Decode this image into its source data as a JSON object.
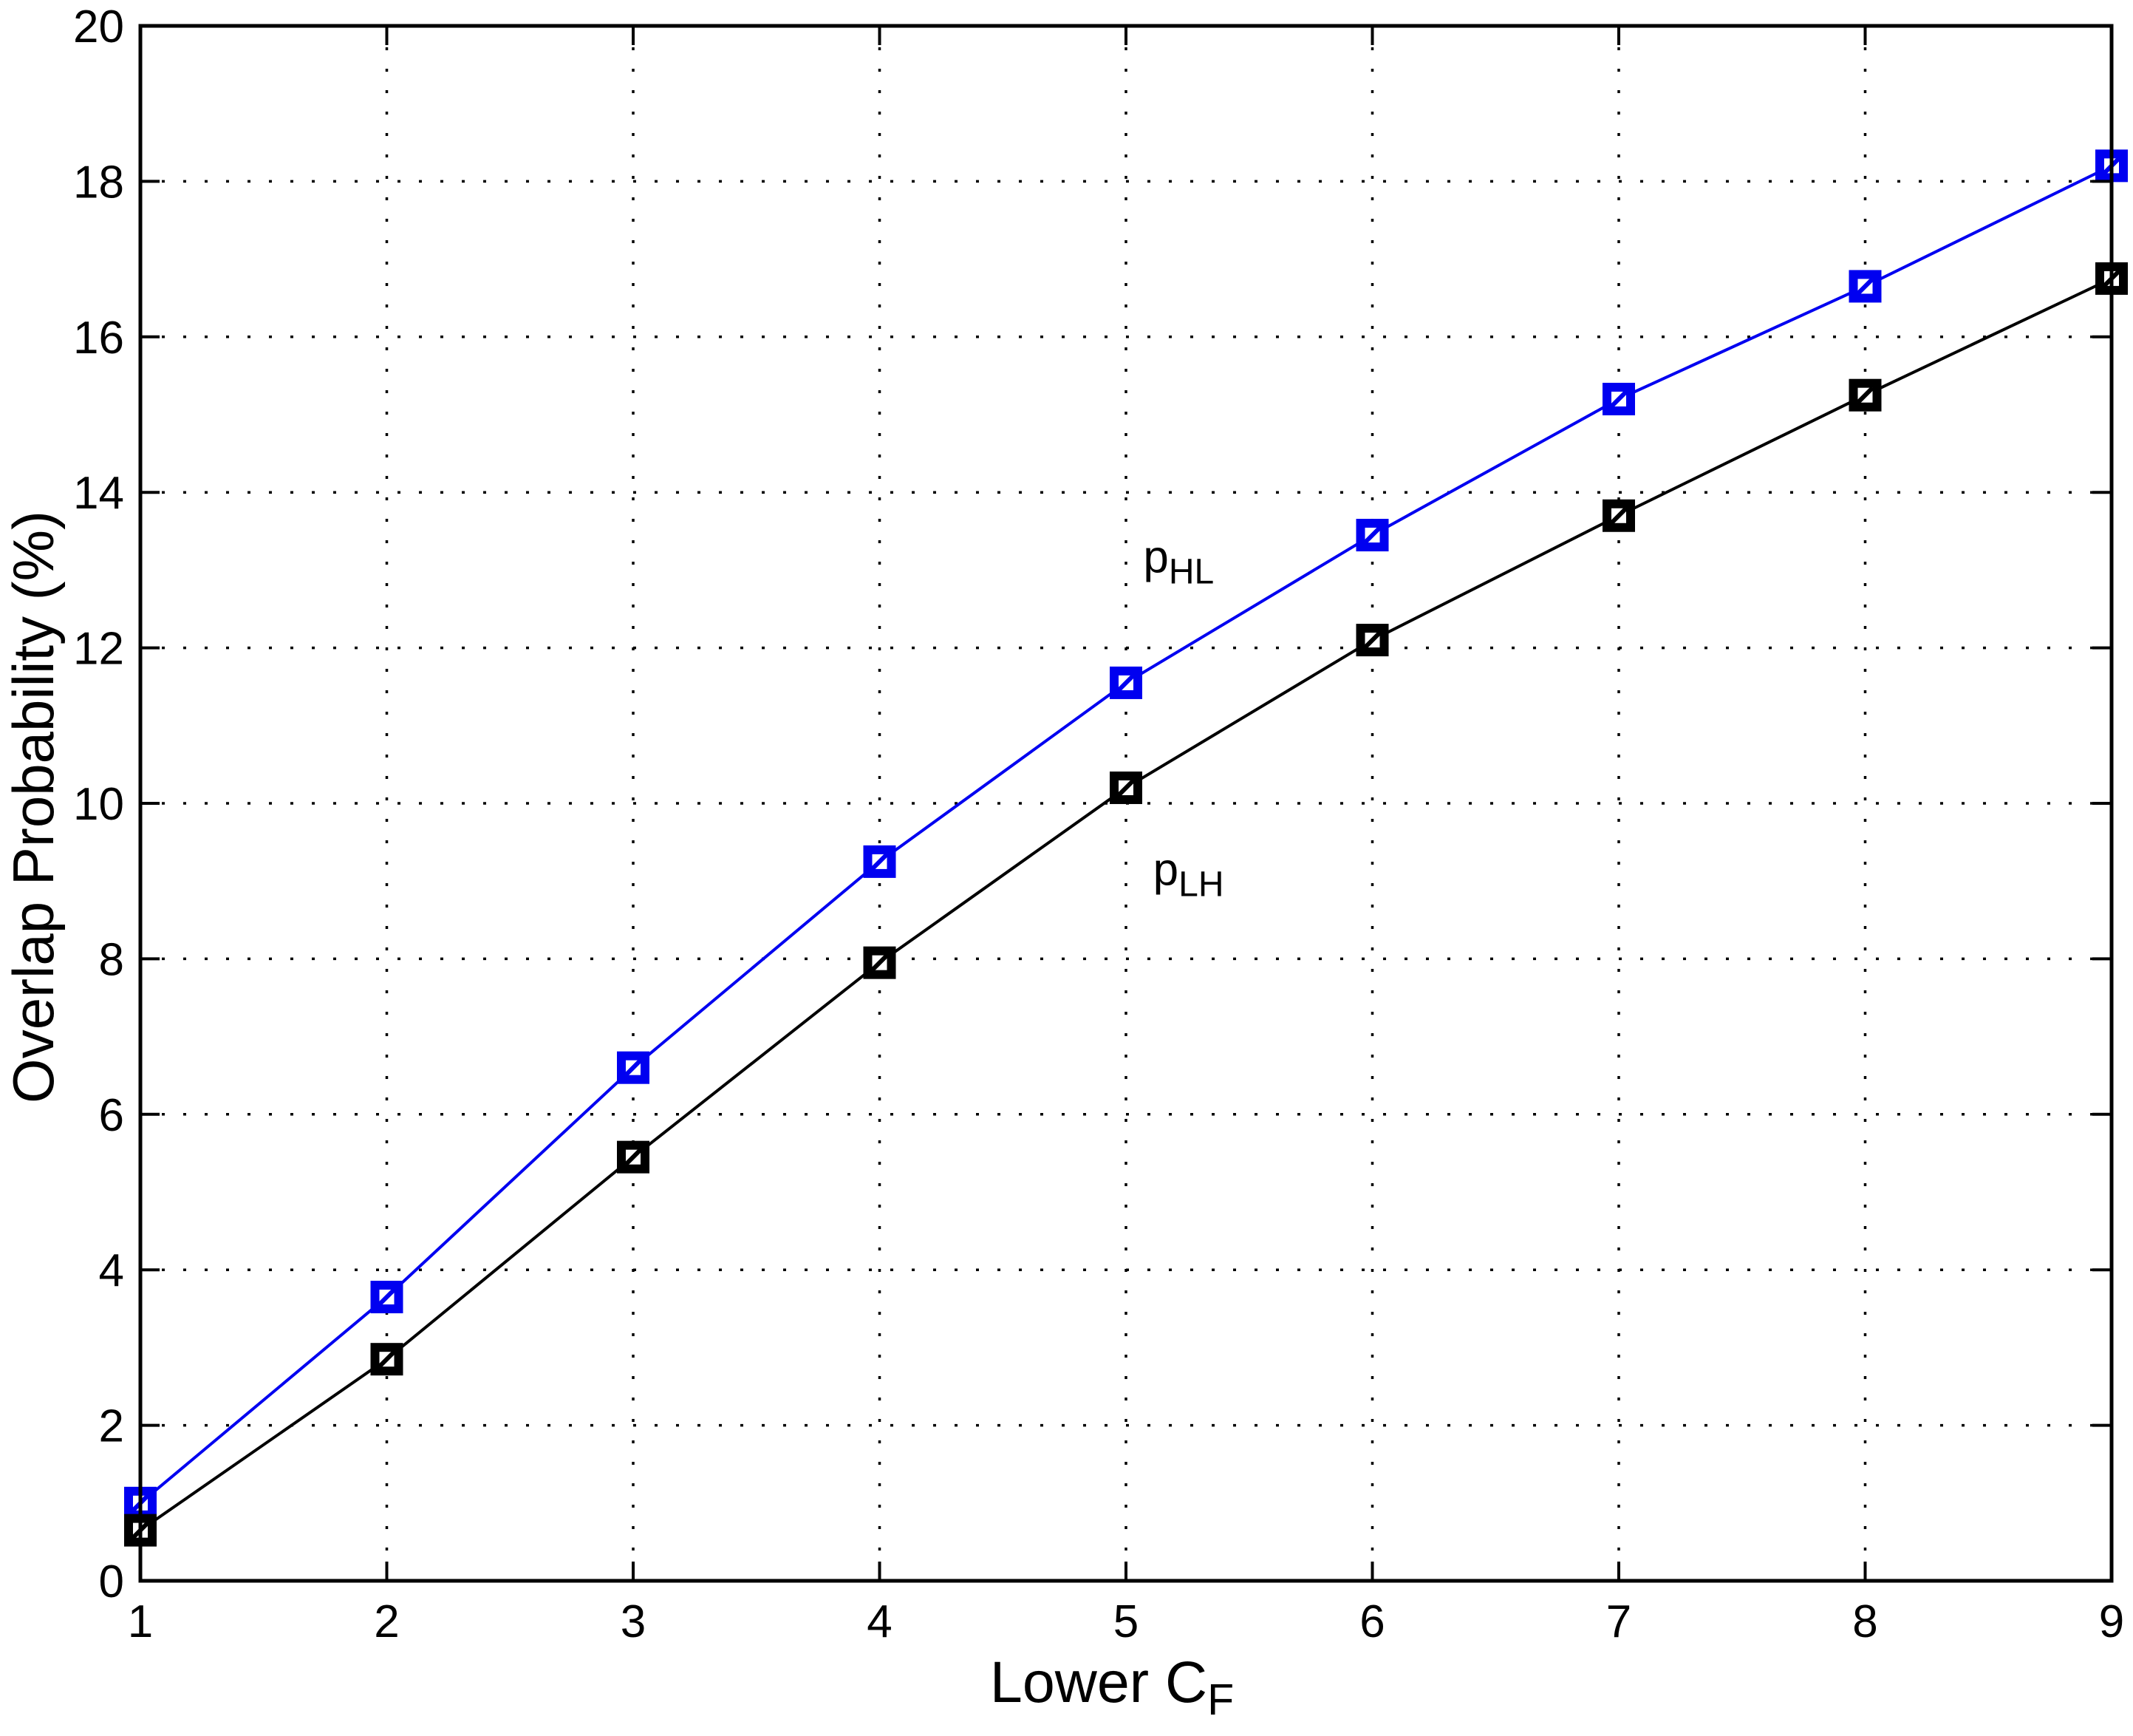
{
  "chart_data": {
    "type": "line",
    "title": "",
    "xlabel_main": "Lower C",
    "xlabel_sub": "F",
    "ylabel": "Overlap Probability (%)",
    "xlim": [
      1,
      9
    ],
    "ylim": [
      0,
      20
    ],
    "x_ticks": [
      1,
      2,
      3,
      4,
      5,
      6,
      7,
      8,
      9
    ],
    "y_ticks": [
      0,
      2,
      4,
      6,
      8,
      10,
      12,
      14,
      16,
      18,
      20
    ],
    "grid": "dotted",
    "grid_color": "#000000",
    "axis_color": "#000000",
    "background_color": "#ffffff",
    "legend_position": "inline-annotations",
    "x": [
      1,
      2,
      3,
      4,
      5,
      6,
      7,
      8,
      9
    ],
    "series": [
      {
        "name": "p_HL",
        "color": "#0000f0",
        "marker": "square-with-white-center",
        "values": [
          1.0,
          3.65,
          6.6,
          9.25,
          11.55,
          13.45,
          15.2,
          16.65,
          18.2
        ]
      },
      {
        "name": "p_LH",
        "color": "#000000",
        "marker": "square-with-white-center",
        "values": [
          0.65,
          2.85,
          5.45,
          7.95,
          10.2,
          12.1,
          13.7,
          15.25,
          16.75
        ]
      }
    ],
    "annotations": [
      {
        "main": "p",
        "sub": "HL",
        "x": 5.07,
        "y": 12.97
      },
      {
        "main": "p",
        "sub": "LH",
        "x": 5.11,
        "y": 8.95
      }
    ]
  }
}
